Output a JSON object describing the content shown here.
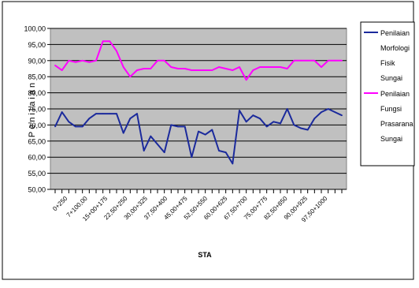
{
  "chart_data": {
    "type": "line",
    "ylabel": "Penilaian",
    "xlabel": "STA",
    "ylim": [
      50,
      100
    ],
    "yticks": [
      "100,00",
      "95,00",
      "90,00",
      "85,00",
      "80,00",
      "75,00",
      "70,00",
      "65,00",
      "60,00",
      "55,00",
      "50,00"
    ],
    "x_tick_labels": [
      "0+250",
      "7+100,00",
      "15+00+175",
      "22,50+250",
      "30,00+325",
      "37,50+400",
      "45,00+475",
      "52,50+550",
      "60,00+625",
      "67,50+700",
      "75,00+775",
      "82,50+850",
      "90,00+925",
      "97,50+1000"
    ],
    "grid": true,
    "legend_position": "right",
    "colors": {
      "series1": "#1b2a9c",
      "series2": "#ff00ff",
      "plot_bg": "#c0c0c0"
    },
    "series": [
      {
        "name": "Penilaian Morfologi Fisik Sungai",
        "values": [
          69.5,
          74,
          71,
          69.5,
          69.5,
          72,
          73.5,
          73.5,
          73.5,
          73.5,
          67.5,
          72,
          73.5,
          62,
          66.5,
          64,
          61.5,
          70,
          69.5,
          69.5,
          60,
          68,
          67,
          68.5,
          62,
          61.5,
          58,
          74.5,
          71,
          73,
          72,
          69.5,
          71,
          70.5,
          75,
          70,
          69,
          68.5,
          72,
          74,
          75,
          74,
          73
        ]
      },
      {
        "name": "Penilaian Fungsi Prasarana Sungai",
        "values": [
          88.5,
          87,
          90,
          89.5,
          90,
          89.5,
          90,
          96,
          96,
          93,
          88,
          85,
          87,
          87.5,
          87.5,
          90,
          90,
          88,
          87.5,
          87.5,
          87,
          87,
          87,
          87,
          88,
          87.5,
          87,
          88,
          84,
          87,
          88,
          88,
          88,
          88,
          87.5,
          90,
          90,
          90,
          90,
          88,
          90,
          90,
          90
        ]
      }
    ]
  }
}
